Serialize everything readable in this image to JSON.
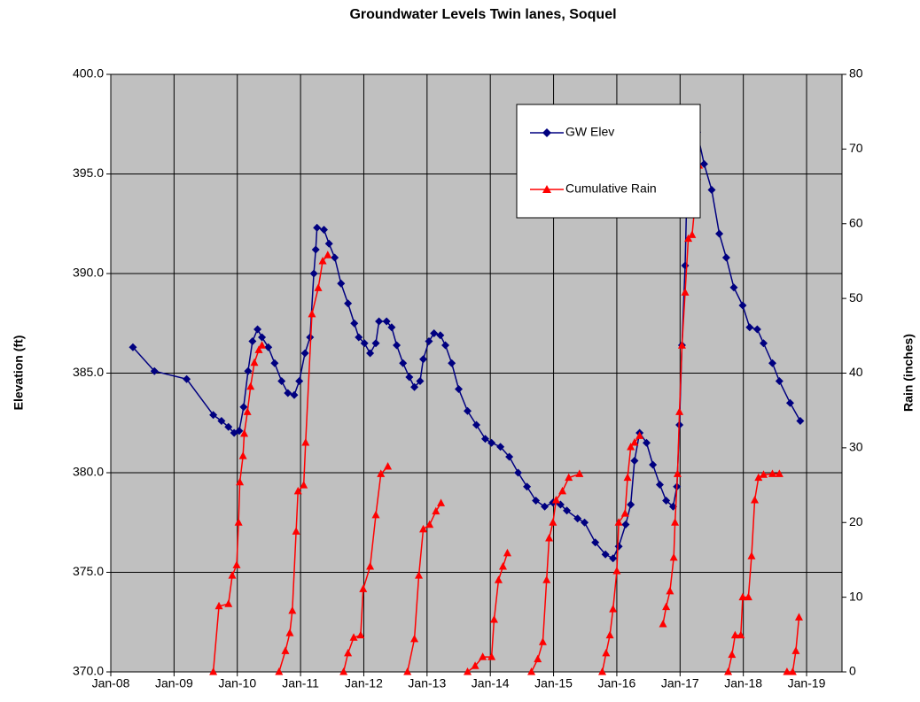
{
  "chart_data": {
    "type": "line",
    "title": "Groundwater Levels Twin lanes, Soquel",
    "y_label": "Elevation (ft)",
    "y2_label": "Rain (inches)",
    "xlim": [
      2008,
      2019.56
    ],
    "xticks": [
      {
        "value": 2008,
        "label": "Jan-08"
      },
      {
        "value": 2009,
        "label": "Jan-09"
      },
      {
        "value": 2010,
        "label": "Jan-10"
      },
      {
        "value": 2011,
        "label": "Jan-11"
      },
      {
        "value": 2012,
        "label": "Jan-12"
      },
      {
        "value": 2013,
        "label": "Jan-13"
      },
      {
        "value": 2014,
        "label": "Jan-14"
      },
      {
        "value": 2015,
        "label": "Jan-15"
      },
      {
        "value": 2016,
        "label": "Jan-16"
      },
      {
        "value": 2017,
        "label": "Jan-17"
      },
      {
        "value": 2018,
        "label": "Jan-18"
      },
      {
        "value": 2019,
        "label": "Jan-19"
      }
    ],
    "ylim": [
      370,
      400
    ],
    "yticks": [
      {
        "value": 370,
        "label": "370.0"
      },
      {
        "value": 375,
        "label": "375.0"
      },
      {
        "value": 380,
        "label": "380.0"
      },
      {
        "value": 385,
        "label": "385.0"
      },
      {
        "value": 390,
        "label": "390.0"
      },
      {
        "value": 395,
        "label": "395.0"
      },
      {
        "value": 400,
        "label": "400.0"
      }
    ],
    "y2lim": [
      0,
      80
    ],
    "y2ticks": [
      0,
      10,
      20,
      30,
      40,
      50,
      60,
      70,
      80
    ],
    "grid": true,
    "series": [
      {
        "name": "GW Elev",
        "color": "#000080",
        "marker": "diamond",
        "axis": "y",
        "x": [
          2008.35,
          2008.69,
          2009.2,
          2009.62,
          2009.75,
          2009.86,
          2009.95,
          2010.03,
          2010.1,
          2010.17,
          2010.24,
          2010.32,
          2010.39,
          2010.49,
          2010.59,
          2010.7,
          2010.8,
          2010.9,
          2010.98,
          2011.07,
          2011.15,
          2011.21,
          2011.24,
          2011.26,
          2011.37,
          2011.45,
          2011.54,
          2011.64,
          2011.75,
          2011.85,
          2011.92,
          2012.01,
          2012.1,
          2012.19,
          2012.24,
          2012.36,
          2012.44,
          2012.52,
          2012.62,
          2012.72,
          2012.8,
          2012.89,
          2012.94,
          2013.03,
          2013.11,
          2013.21,
          2013.29,
          2013.39,
          2013.5,
          2013.64,
          2013.78,
          2013.92,
          2014.02,
          2014.16,
          2014.3,
          2014.44,
          2014.58,
          2014.72,
          2014.86,
          2014.99,
          2015.11,
          2015.21,
          2015.38,
          2015.49,
          2015.66,
          2015.82,
          2015.94,
          2016.03,
          2016.14,
          2016.22,
          2016.28,
          2016.36,
          2016.47,
          2016.57,
          2016.68,
          2016.78,
          2016.89,
          2016.95,
          2016.99,
          2017.03,
          2017.08,
          2017.13,
          2017.2,
          2017.27,
          2017.38,
          2017.5,
          2017.62,
          2017.73,
          2017.85,
          2017.99,
          2018.1,
          2018.22,
          2018.32,
          2018.46,
          2018.57,
          2018.74,
          2018.9
        ],
        "values": [
          386.3,
          385.1,
          384.7,
          382.9,
          382.6,
          382.3,
          382.0,
          382.1,
          383.3,
          385.1,
          386.6,
          387.2,
          386.8,
          386.3,
          385.5,
          384.6,
          384.0,
          383.9,
          384.6,
          386.0,
          386.8,
          390.0,
          391.2,
          392.3,
          392.2,
          391.5,
          390.8,
          389.5,
          388.5,
          387.5,
          386.8,
          386.5,
          386.0,
          386.5,
          387.6,
          387.6,
          387.3,
          386.4,
          385.5,
          384.8,
          384.3,
          384.6,
          385.7,
          386.6,
          387.0,
          386.9,
          386.4,
          385.5,
          384.2,
          383.1,
          382.4,
          381.7,
          381.5,
          381.3,
          380.8,
          380.0,
          379.3,
          378.6,
          378.3,
          378.5,
          378.4,
          378.1,
          377.7,
          377.5,
          376.5,
          375.9,
          375.7,
          376.3,
          377.4,
          378.4,
          380.6,
          382.0,
          381.5,
          380.4,
          379.4,
          378.6,
          378.3,
          379.3,
          382.4,
          386.4,
          390.4,
          397.1,
          397.5,
          397.1,
          395.5,
          394.2,
          392.0,
          390.8,
          389.3,
          388.4,
          387.3,
          387.2,
          386.5,
          385.5,
          384.6,
          383.5,
          382.6
        ]
      },
      {
        "name": "Cumulative Rain",
        "color": "#ff0000",
        "marker": "triangle",
        "axis": "y2",
        "x": [
          2009.62,
          2009.71,
          2009.86,
          2009.92,
          2009.99,
          2010.02,
          2010.04,
          2010.09,
          2010.11,
          2010.16,
          2010.21,
          2010.27,
          2010.34,
          2010.39,
          null,
          2010.66,
          2010.76,
          2010.83,
          2010.87,
          2010.93,
          2010.96,
          2011.05,
          2011.08,
          2011.18,
          2011.28,
          2011.35,
          2011.43,
          null,
          2011.68,
          2011.75,
          2011.84,
          2011.95,
          2011.99,
          2012.1,
          2012.19,
          2012.27,
          2012.38,
          null,
          2012.69,
          2012.8,
          2012.87,
          2012.94,
          2013.04,
          2013.14,
          2013.22,
          null,
          2013.64,
          2013.76,
          2013.88,
          2014.02,
          2014.06,
          2014.13,
          2014.2,
          2014.27,
          null,
          2014.65,
          2014.75,
          2014.83,
          2014.89,
          2014.93,
          2014.99,
          2015.04,
          2015.14,
          2015.24,
          2015.41,
          null,
          2015.77,
          2015.83,
          2015.89,
          2015.94,
          2016.0,
          2016.03,
          2016.13,
          2016.17,
          2016.22,
          2016.28,
          2016.36,
          null,
          2016.73,
          2016.78,
          2016.84,
          2016.9,
          2016.92,
          2016.96,
          2016.99,
          2017.03,
          2017.08,
          2017.13,
          2017.19,
          2017.25,
          2017.27,
          2017.3,
          null,
          2017.76,
          2017.82,
          2017.87,
          2017.96,
          2017.99,
          2018.08,
          2018.13,
          2018.18,
          2018.24,
          2018.32,
          2018.46,
          2018.57,
          null,
          2018.69,
          2018.78,
          2018.83,
          2018.88
        ],
        "values": [
          0,
          8.8,
          9.1,
          12.9,
          14.3,
          20.0,
          25.4,
          28.9,
          31.9,
          34.8,
          38.2,
          41.4,
          43.1,
          43.7,
          null,
          0,
          2.8,
          5.2,
          8.2,
          18.8,
          24.2,
          25.0,
          30.7,
          47.9,
          51.4,
          55.0,
          55.8,
          null,
          0,
          2.5,
          4.6,
          4.9,
          11.1,
          14.1,
          21.0,
          26.5,
          27.5,
          null,
          0,
          4.4,
          12.9,
          19.1,
          19.7,
          21.5,
          22.6,
          null,
          0,
          0.8,
          2.0,
          2.0,
          7.0,
          12.3,
          14.1,
          15.9,
          null,
          0,
          1.7,
          4.0,
          12.3,
          17.9,
          20.0,
          23.0,
          24.2,
          26.0,
          26.5,
          null,
          0,
          2.5,
          4.9,
          8.4,
          13.5,
          20.0,
          21.2,
          26.0,
          30.1,
          30.7,
          31.6,
          null,
          6.4,
          8.7,
          10.8,
          15.3,
          20.0,
          26.5,
          34.8,
          43.7,
          50.8,
          58.0,
          58.5,
          63.9,
          66.3,
          67.8,
          null,
          0,
          2.3,
          4.9,
          4.9,
          10.0,
          10.0,
          15.5,
          23.0,
          26.0,
          26.4,
          26.5,
          26.5,
          null,
          0,
          0,
          2.8,
          7.3
        ]
      }
    ]
  }
}
